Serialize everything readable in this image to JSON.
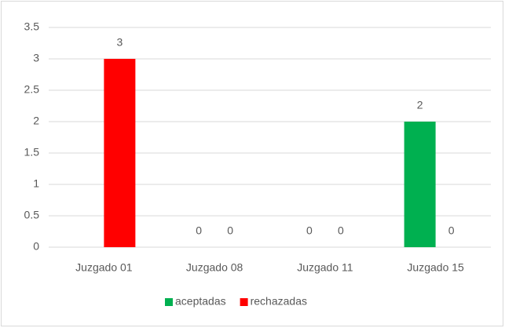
{
  "chart_data": {
    "type": "bar",
    "categories": [
      "Juzgado 01",
      "Juzgado 08",
      "Juzgado 11",
      "Juzgado 15"
    ],
    "series": [
      {
        "name": "aceptadas",
        "color": "#00b050",
        "values": [
          null,
          0,
          0,
          2
        ]
      },
      {
        "name": "rechazadas",
        "color": "#ff0000",
        "values": [
          3,
          0,
          0,
          0
        ]
      }
    ],
    "ylim": [
      0,
      3.5
    ],
    "yticks": [
      0,
      0.5,
      1,
      1.5,
      2,
      2.5,
      3,
      3.5
    ],
    "grid": true,
    "legend": "bottom"
  }
}
